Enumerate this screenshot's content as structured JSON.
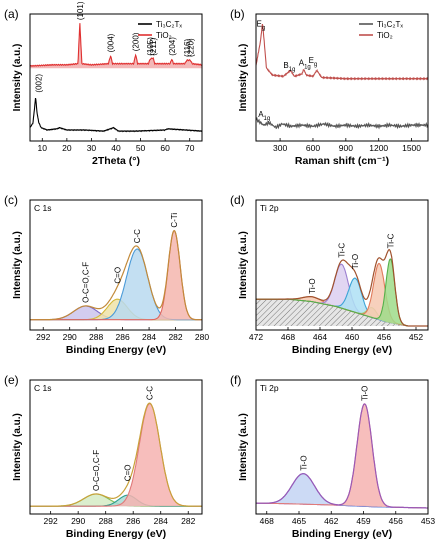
{
  "chart_data": [
    {
      "id": "a",
      "panel_label": "(a)",
      "type": "line",
      "xlabel": "2Theta (°)",
      "ylabel": "Intensity (a.u.)",
      "xlim": [
        5,
        75
      ],
      "xticks": [
        10,
        20,
        30,
        40,
        50,
        60,
        70
      ],
      "legend": {
        "position": "top-right",
        "entries": [
          {
            "name": "Ti₃C₂Tₓ",
            "color": "#000000"
          },
          {
            "name": "TiO₂",
            "color": "#e03030"
          }
        ]
      },
      "series": [
        {
          "name": "TiO₂",
          "color": "#e03030",
          "fill": "#f3b8b8",
          "baseline": 0.58,
          "points": [
            [
              5,
              0.6
            ],
            [
              14,
              0.61
            ],
            [
              20,
              0.61
            ],
            [
              24.5,
              0.62
            ],
            [
              25.3,
              0.97
            ],
            [
              26.1,
              0.62
            ],
            [
              30,
              0.61
            ],
            [
              36.9,
              0.62
            ],
            [
              37.8,
              0.69
            ],
            [
              38.6,
              0.62
            ],
            [
              47.2,
              0.62
            ],
            [
              48.0,
              0.7
            ],
            [
              48.8,
              0.62
            ],
            [
              53.2,
              0.62
            ],
            [
              53.9,
              0.66
            ],
            [
              55.1,
              0.67
            ],
            [
              55.8,
              0.62
            ],
            [
              62.0,
              0.62
            ],
            [
              62.7,
              0.66
            ],
            [
              63.4,
              0.62
            ],
            [
              68.0,
              0.62
            ],
            [
              68.8,
              0.65
            ],
            [
              70.3,
              0.65
            ],
            [
              71.0,
              0.62
            ],
            [
              75,
              0.61
            ]
          ]
        },
        {
          "name": "Ti₃C₂Tₓ",
          "color": "#000000",
          "baseline": 0.0,
          "points": [
            [
              5,
              0.06
            ],
            [
              6.2,
              0.1
            ],
            [
              6.8,
              0.22
            ],
            [
              7.3,
              0.33
            ],
            [
              7.8,
              0.2
            ],
            [
              8.5,
              0.11
            ],
            [
              9.5,
              0.06
            ],
            [
              12,
              0.04
            ],
            [
              16,
              0.05
            ],
            [
              17,
              0.06
            ],
            [
              20,
              0.04
            ],
            [
              27,
              0.04
            ],
            [
              35,
              0.03
            ],
            [
              39,
              0.06
            ],
            [
              41,
              0.03
            ],
            [
              48,
              0.03
            ],
            [
              60,
              0.04
            ],
            [
              61,
              0.05
            ],
            [
              75,
              0.03
            ]
          ]
        }
      ],
      "annotations": [
        "(002)",
        "(101)",
        "(004)",
        "(200)",
        "(105)",
        "(211)",
        "(204)",
        "(116)",
        "(220)"
      ]
    },
    {
      "id": "b",
      "panel_label": "(b)",
      "type": "line",
      "xlabel": "Raman shift (cm⁻¹)",
      "ylabel": "Intensity (a.u.)",
      "xlim": [
        80,
        1650
      ],
      "xticks": [
        300,
        600,
        900,
        1200,
        1500
      ],
      "legend": {
        "position": "top-right",
        "entries": [
          {
            "name": "Ti₃C₂Tₓ",
            "color": "#555555"
          },
          {
            "name": "TiO₂",
            "color": "#c0504d"
          }
        ]
      },
      "series": [
        {
          "name": "TiO₂",
          "color": "#c0504d",
          "points": [
            [
              80,
              0.6
            ],
            [
              120,
              0.8
            ],
            [
              140,
              0.96
            ],
            [
              155,
              0.8
            ],
            [
              175,
              0.58
            ],
            [
              230,
              0.52
            ],
            [
              330,
              0.51
            ],
            [
              395,
              0.56
            ],
            [
              430,
              0.51
            ],
            [
              500,
              0.53
            ],
            [
              515,
              0.57
            ],
            [
              540,
              0.52
            ],
            [
              600,
              0.51
            ],
            [
              635,
              0.56
            ],
            [
              680,
              0.5
            ],
            [
              900,
              0.49
            ],
            [
              1200,
              0.49
            ],
            [
              1650,
              0.49
            ]
          ]
        },
        {
          "name": "Ti₃C₂Tₓ",
          "color": "#555555",
          "points": [
            [
              80,
              0.15
            ],
            [
              150,
              0.1
            ],
            [
              200,
              0.12
            ],
            [
              260,
              0.08
            ],
            [
              320,
              0.11
            ],
            [
              400,
              0.09
            ],
            [
              500,
              0.1
            ],
            [
              600,
              0.09
            ],
            [
              700,
              0.11
            ],
            [
              800,
              0.09
            ],
            [
              900,
              0.1
            ],
            [
              1000,
              0.09
            ],
            [
              1100,
              0.1
            ],
            [
              1200,
              0.09
            ],
            [
              1300,
              0.1
            ],
            [
              1400,
              0.09
            ],
            [
              1500,
              0.1
            ],
            [
              1650,
              0.1
            ]
          ]
        }
      ],
      "annotations": [
        "Eg",
        "B1g",
        "A1g",
        "Eg",
        "A1g"
      ]
    },
    {
      "id": "c",
      "panel_label": "(c)",
      "corner_label": "C 1s",
      "type": "area",
      "xlabel": "Binding Energy (eV)",
      "ylabel": "Intensity (a.u.)",
      "xlim": [
        293,
        280
      ],
      "xticks": [
        292,
        290,
        288,
        286,
        284,
        282,
        280
      ],
      "components": [
        {
          "name": "O-C=O,C-F",
          "center": 288.8,
          "amp": 0.12,
          "width": 0.9,
          "color": "#7b68c8",
          "fill": "#cbc4ec"
        },
        {
          "name": "C=O",
          "center": 286.4,
          "amp": 0.18,
          "width": 0.75,
          "color": "#d4b83a",
          "fill": "#efe3a8"
        },
        {
          "name": "C-C",
          "center": 284.9,
          "amp": 0.62,
          "width": 0.8,
          "color": "#4a9ad8",
          "fill": "#b8d9f0"
        },
        {
          "name": "C-Ti",
          "center": 282.1,
          "amp": 0.78,
          "width": 0.45,
          "color": "#e0665e",
          "fill": "#f4b6ae"
        }
      ],
      "background": 0.02,
      "envelope_color": "#c28a3a"
    },
    {
      "id": "d",
      "panel_label": "(d)",
      "corner_label": "Ti 2p",
      "type": "area",
      "xlabel": "Binding Energy (eV)",
      "ylabel": "Intensity (a.u.)",
      "xlim": [
        472,
        450.5
      ],
      "xticks": [
        472,
        468,
        464,
        460,
        456,
        452
      ],
      "components": [
        {
          "name": "Ti-O",
          "center": 465.0,
          "amp": 0.04,
          "width": 1.2,
          "color": "#e07a5a",
          "fill": "#f6c8b0"
        },
        {
          "name": "Ti-C",
          "center": 461.3,
          "amp": 0.36,
          "width": 0.85,
          "color": "#9b7fd0",
          "fill": "#dccff0"
        },
        {
          "name": "Ti-O",
          "center": 459.6,
          "amp": 0.28,
          "width": 0.8,
          "color": "#3aa3d6",
          "fill": "#aee0f4"
        },
        {
          "name": "",
          "center": 457.5,
          "amp": 0.08,
          "width": 0.6,
          "color": "#9ad77a",
          "fill": "#d7efc7"
        },
        {
          "name": "",
          "center": 456.6,
          "amp": 0.46,
          "width": 0.7,
          "color": "#e07a5a",
          "fill": "#f6c8b0"
        },
        {
          "name": "Ti-C",
          "center": 455.2,
          "amp": 0.52,
          "width": 0.55,
          "color": "#55b04a",
          "fill": "#9fdc8a"
        }
      ],
      "background_line": [
        [
          472,
          0.22
        ],
        [
          468,
          0.22
        ],
        [
          465,
          0.2
        ],
        [
          462,
          0.16
        ],
        [
          459,
          0.1
        ],
        [
          456,
          0.04
        ],
        [
          453,
          0.0
        ],
        [
          450.5,
          0.0
        ]
      ],
      "envelope_color": "#a0522d"
    },
    {
      "id": "e",
      "panel_label": "(e)",
      "corner_label": "C 1s",
      "type": "area",
      "xlabel": "Binding Energy (eV)",
      "ylabel": "Intensity (a.u.)",
      "xlim": [
        293.5,
        281
      ],
      "xticks": [
        292,
        290,
        288,
        286,
        284,
        282
      ],
      "components": [
        {
          "name": "O-C=O,C-F",
          "center": 288.7,
          "amp": 0.1,
          "width": 0.9,
          "color": "#7fbf5a",
          "fill": "#d5ebc4"
        },
        {
          "name": "C=O",
          "center": 286.4,
          "amp": 0.09,
          "width": 0.65,
          "color": "#2e9e8e",
          "fill": "#a7dbd3"
        },
        {
          "name": "C-C",
          "center": 284.8,
          "amp": 0.84,
          "width": 0.75,
          "color": "#e07a7a",
          "fill": "#f6b3b0"
        }
      ],
      "background": 0.015,
      "envelope_color": "#c9a23a"
    },
    {
      "id": "f",
      "panel_label": "(f)",
      "corner_label": "Ti 2p",
      "type": "area",
      "xlabel": "Binding Energy (eV)",
      "ylabel": "Intensity (a.u.)",
      "xlim": [
        469,
        453
      ],
      "xticks": [
        468,
        465,
        462,
        459,
        456,
        453
      ],
      "components": [
        {
          "name": "Ti-O",
          "center": 464.6,
          "amp": 0.25,
          "width": 1.05,
          "color": "#5b7fd8",
          "fill": "#c3d3f3"
        },
        {
          "name": "Ti-O",
          "center": 458.9,
          "amp": 0.84,
          "width": 0.7,
          "color": "#e07a7a",
          "fill": "#f6b3b0"
        }
      ],
      "background_line": [
        [
          469,
          0.04
        ],
        [
          466,
          0.035
        ],
        [
          462,
          0.025
        ],
        [
          458,
          0.01
        ],
        [
          453,
          0.0
        ]
      ],
      "envelope_color": "#9b59b6"
    }
  ]
}
